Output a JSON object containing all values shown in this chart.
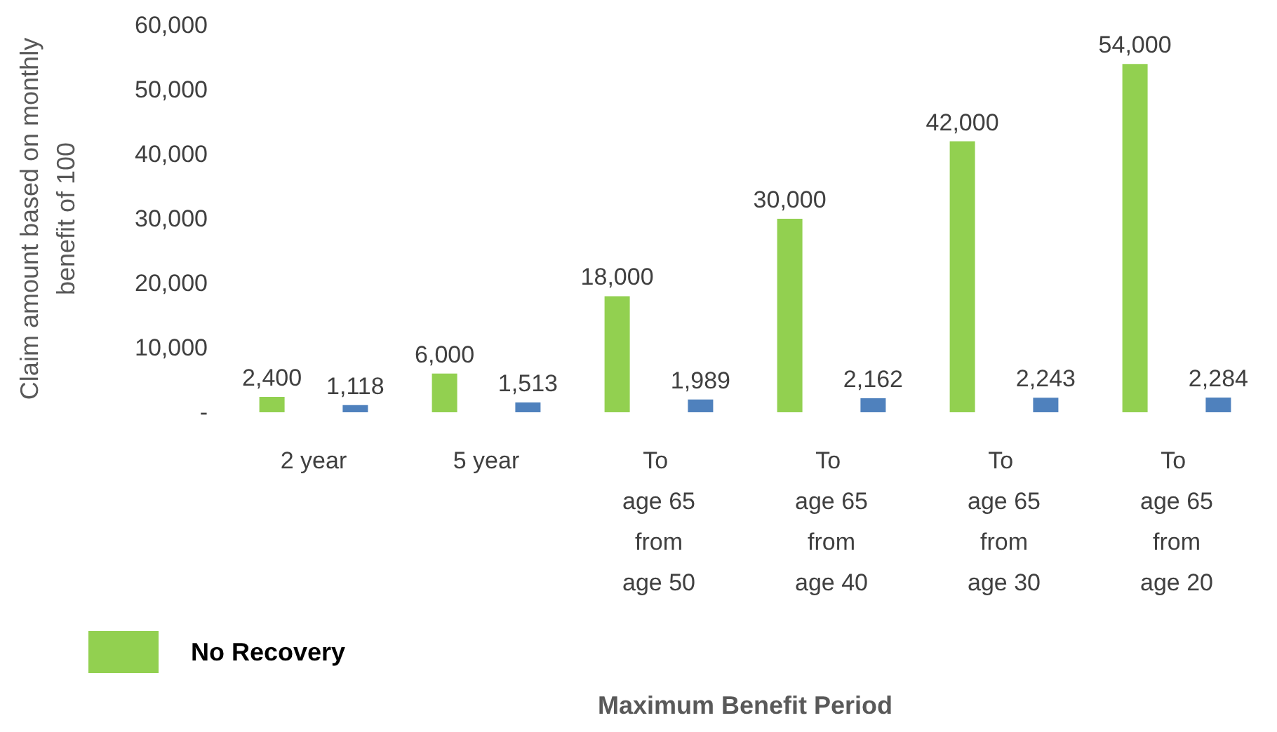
{
  "chart_data": {
    "type": "bar",
    "xlabel": "Maximum Benefit Period",
    "ylabel": "Claim amount based on monthly\nbenefit of 100",
    "categories": [
      "2 year",
      "5 year",
      "To age 65 from age 50",
      "To age 65 from age 40",
      "To age 65 from age 30",
      "To age 65 from age 20"
    ],
    "series": [
      {
        "name": "No Recovery",
        "color": "#92d050",
        "values": [
          2400,
          6000,
          18000,
          30000,
          42000,
          54000
        ],
        "value_labels": [
          "2,400",
          "6,000",
          "18,000",
          "30,000",
          "42,000",
          "54,000"
        ]
      },
      {
        "color": "#4f81bd",
        "values": [
          1118,
          1513,
          1989,
          2162,
          2243,
          2284
        ],
        "value_labels": [
          "1,118",
          "1,513",
          "1,989",
          "2,162",
          "2,243",
          "2,284"
        ]
      }
    ],
    "ylim": [
      0,
      60000
    ],
    "yticks": [
      {
        "value": 0,
        "label": "-"
      },
      {
        "value": 10000,
        "label": "10,000"
      },
      {
        "value": 20000,
        "label": "20,000"
      },
      {
        "value": 30000,
        "label": "30,000"
      },
      {
        "value": 40000,
        "label": "40,000"
      },
      {
        "value": 50000,
        "label": "50,000"
      },
      {
        "value": 60000,
        "label": "60,000"
      }
    ],
    "grid": false,
    "legend": "bottom left"
  }
}
